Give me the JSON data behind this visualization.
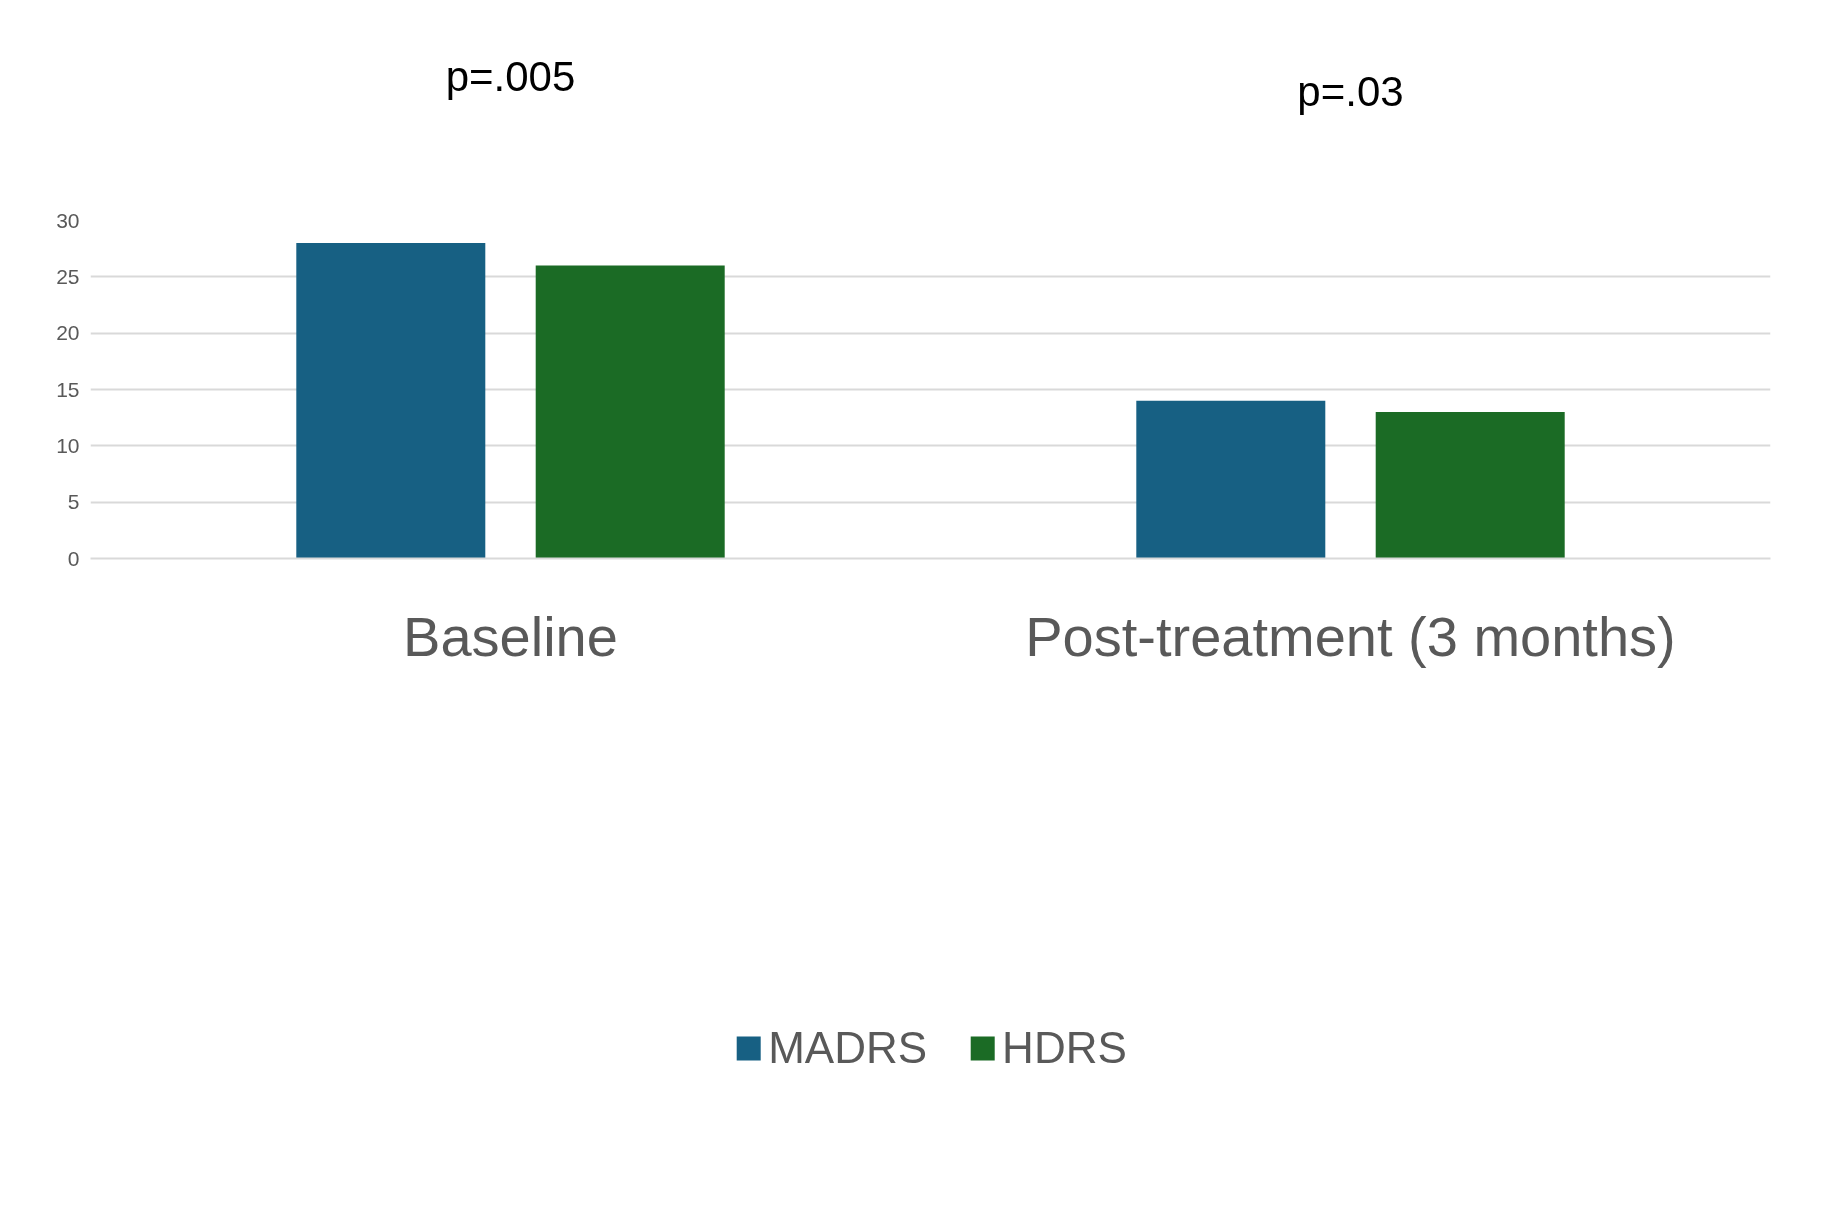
{
  "chart_data": {
    "type": "bar",
    "categories": [
      "Baseline",
      "Post-treatment (3 months)"
    ],
    "series": [
      {
        "name": "MADRS",
        "color": "#176083",
        "values": [
          28,
          14
        ]
      },
      {
        "name": "HDRS",
        "color": "#1b6b25",
        "values": [
          26,
          13
        ]
      }
    ],
    "ylim": [
      0,
      30
    ],
    "yticks": [
      0,
      5,
      10,
      15,
      20,
      25,
      30
    ],
    "grid": "y",
    "legend": "bottom",
    "annotations": [
      "p=.005",
      "p=.03"
    ]
  }
}
